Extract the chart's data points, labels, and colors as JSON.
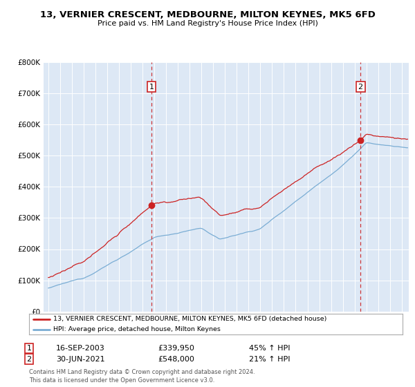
{
  "title": "13, VERNIER CRESCENT, MEDBOURNE, MILTON KEYNES, MK5 6FD",
  "subtitle": "Price paid vs. HM Land Registry's House Price Index (HPI)",
  "legend_line1": "13, VERNIER CRESCENT, MEDBOURNE, MILTON KEYNES, MK5 6FD (detached house)",
  "legend_line2": "HPI: Average price, detached house, Milton Keynes",
  "annotation1_label": "1",
  "annotation1_date": "16-SEP-2003",
  "annotation1_price": "£339,950",
  "annotation1_hpi": "45% ↑ HPI",
  "annotation2_label": "2",
  "annotation2_date": "30-JUN-2021",
  "annotation2_price": "£548,000",
  "annotation2_hpi": "21% ↑ HPI",
  "footer": "Contains HM Land Registry data © Crown copyright and database right 2024.\nThis data is licensed under the Open Government Licence v3.0.",
  "price_line_color": "#cc2222",
  "hpi_line_color": "#7aadd4",
  "dashed_line_color": "#cc2222",
  "ylim": [
    0,
    800000
  ],
  "yticks": [
    0,
    100000,
    200000,
    300000,
    400000,
    500000,
    600000,
    700000,
    800000
  ],
  "background_color": "#ffffff",
  "plot_bg_color": "#dde8f5"
}
